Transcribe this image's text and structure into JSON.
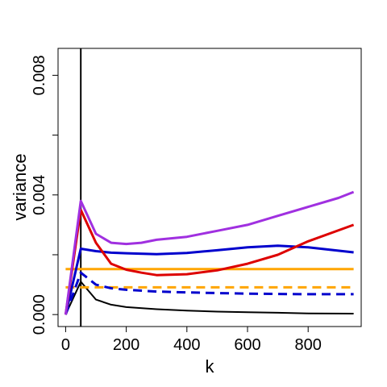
{
  "chart_data": {
    "type": "line",
    "title": "",
    "xlabel": "k",
    "ylabel": "variance",
    "xlim": [
      -25,
      975
    ],
    "ylim": [
      -0.0004,
      0.0089
    ],
    "x_ticks": [
      0,
      200,
      400,
      600,
      800
    ],
    "x_tick_labels": [
      "0",
      "200",
      "400",
      "600",
      "800"
    ],
    "y_ticks": [
      0,
      0.002,
      0.004,
      0.006,
      0.008
    ],
    "y_tick_labels": [
      "0.000",
      "",
      "0.004",
      "",
      "0.008"
    ],
    "grid": false,
    "legend": "none",
    "series": [
      {
        "color": "#000000",
        "dash": "solid",
        "width": 2,
        "x": [
          0,
          50,
          100,
          150,
          200,
          300,
          400,
          500,
          600,
          700,
          800,
          950
        ],
        "y": [
          0.0,
          0.0011,
          0.0005,
          0.00033,
          0.00025,
          0.00018,
          0.00013,
          0.0001,
          8e-05,
          6e-05,
          4e-05,
          3e-05
        ]
      },
      {
        "color": "#000000",
        "dash": "solid",
        "width": 2,
        "x": [
          50,
          50
        ],
        "y": [
          -0.0004,
          0.0089
        ]
      },
      {
        "color": "#ffa500",
        "dash": "solid",
        "width": 3,
        "x": [
          0,
          950
        ],
        "y": [
          0.00152,
          0.00152
        ]
      },
      {
        "color": "#ffa500",
        "dash": "dashed",
        "width": 3,
        "x": [
          0,
          950
        ],
        "y": [
          0.00091,
          0.00091
        ]
      },
      {
        "color": "#0000cd",
        "dash": "dashed",
        "width": 3,
        "x": [
          0,
          50,
          100,
          150,
          200,
          300,
          400,
          500,
          600,
          700,
          800,
          950
        ],
        "y": [
          0.0,
          0.0014,
          0.001,
          0.00088,
          0.00083,
          0.00077,
          0.00074,
          0.00072,
          0.0007,
          0.00069,
          0.00068,
          0.00068
        ]
      },
      {
        "color": "#0000cd",
        "dash": "solid",
        "width": 3,
        "x": [
          0,
          50,
          100,
          150,
          200,
          300,
          400,
          500,
          600,
          700,
          800,
          950
        ],
        "y": [
          0.0,
          0.0022,
          0.00212,
          0.00207,
          0.00205,
          0.00202,
          0.00206,
          0.00215,
          0.00225,
          0.0023,
          0.00225,
          0.00208
        ]
      },
      {
        "color": "#dd0000",
        "dash": "solid",
        "width": 3,
        "x": [
          0,
          50,
          100,
          150,
          200,
          250,
          300,
          400,
          500,
          600,
          700,
          800,
          950
        ],
        "y": [
          0.0,
          0.0035,
          0.0024,
          0.0017,
          0.0015,
          0.0014,
          0.00132,
          0.00135,
          0.00148,
          0.0017,
          0.002,
          0.00245,
          0.003
        ]
      },
      {
        "color": "#a030e0",
        "dash": "solid",
        "width": 3,
        "x": [
          0,
          50,
          100,
          150,
          200,
          250,
          300,
          400,
          500,
          600,
          700,
          800,
          900,
          950
        ],
        "y": [
          0.0,
          0.0038,
          0.0027,
          0.0024,
          0.00236,
          0.0024,
          0.0025,
          0.0026,
          0.0028,
          0.003,
          0.0033,
          0.0036,
          0.0039,
          0.0041
        ]
      }
    ]
  }
}
